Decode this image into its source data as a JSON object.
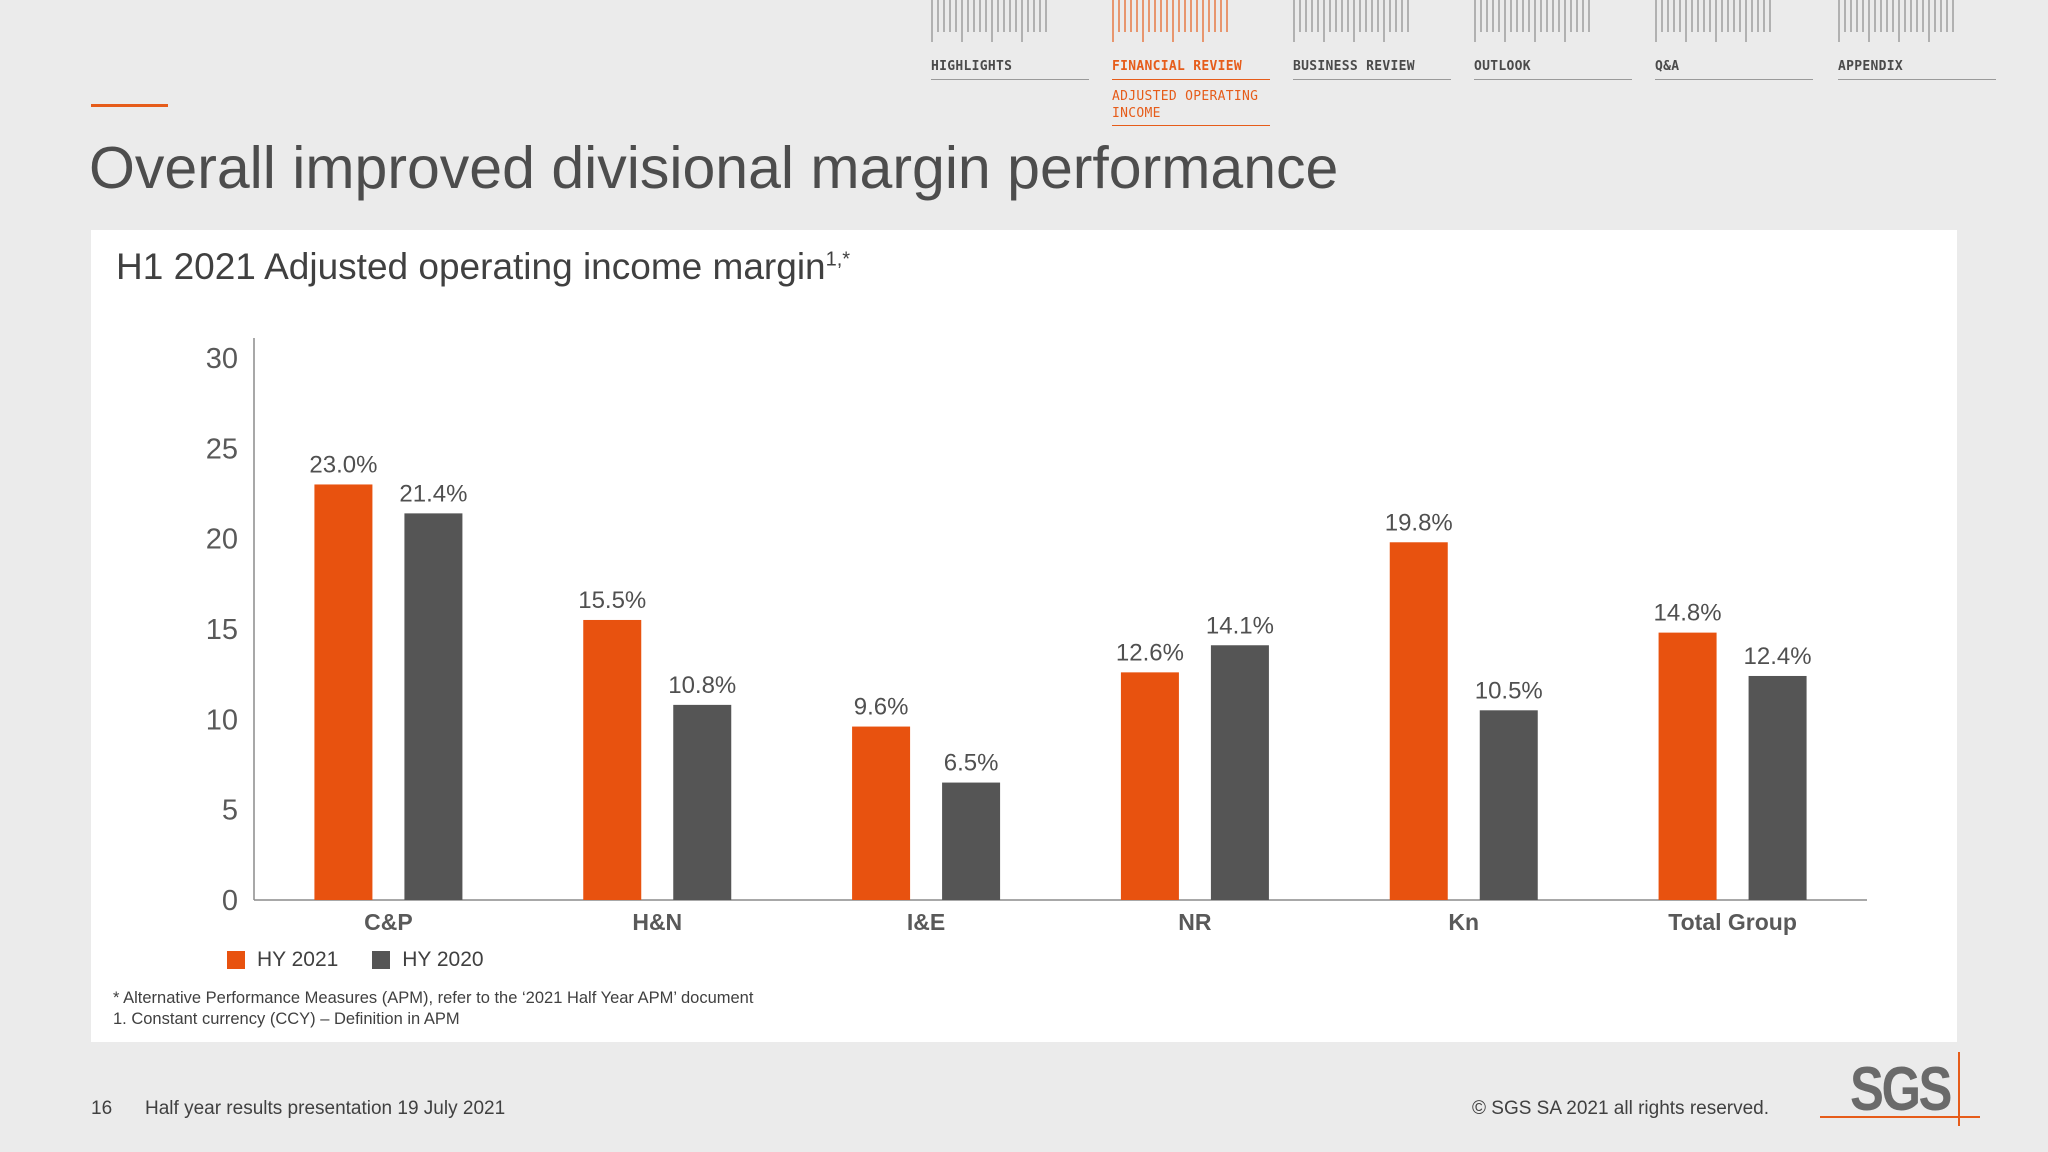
{
  "nav": {
    "items": [
      {
        "label": "HIGHLIGHTS",
        "active": false
      },
      {
        "label": "FINANCIAL REVIEW",
        "active": true,
        "sub": "ADJUSTED OPERATING INCOME"
      },
      {
        "label": "BUSINESS REVIEW",
        "active": false
      },
      {
        "label": "OUTLOOK",
        "active": false
      },
      {
        "label": "Q&A",
        "active": false
      },
      {
        "label": "APPENDIX",
        "active": false
      }
    ]
  },
  "page": {
    "title": "Overall improved divisional margin performance"
  },
  "chart_data": {
    "type": "bar",
    "title": "H1 2021 Adjusted operating income margin",
    "title_sup": "1,*",
    "categories": [
      "C&P",
      "H&N",
      "I&E",
      "NR",
      "Kn",
      "Total Group"
    ],
    "series": [
      {
        "name": "HY 2021",
        "color": "#e8520f",
        "values": [
          23.0,
          15.5,
          9.6,
          12.6,
          19.8,
          14.8
        ],
        "labels": [
          "23.0%",
          "15.5%",
          "9.6%",
          "12.6%",
          "19.8%",
          "14.8%"
        ]
      },
      {
        "name": "HY 2020",
        "color": "#555555",
        "values": [
          21.4,
          10.8,
          6.5,
          14.1,
          10.5,
          12.4
        ],
        "labels": [
          "21.4%",
          "10.8%",
          "6.5%",
          "14.1%",
          "10.5%",
          "12.4%"
        ]
      }
    ],
    "yticks": [
      0,
      5,
      10,
      15,
      20,
      25,
      30
    ],
    "ylim": [
      0,
      30
    ],
    "grid": false,
    "legend": "bottom-left"
  },
  "footnotes": [
    "*  Alternative Performance Measures (APM), refer to the ‘2021 Half Year APM’ document",
    "1. Constant currency (CCY) – Definition in APM"
  ],
  "footer": {
    "page_number": "16",
    "text": "Half year results presentation 19 July 2021",
    "copyright": "© SGS SA 2021 all rights reserved.",
    "logo": "SGS"
  },
  "colors": {
    "accent": "#e65c1a",
    "nav_text": "#4a4a4a",
    "background": "#ebebeb"
  }
}
